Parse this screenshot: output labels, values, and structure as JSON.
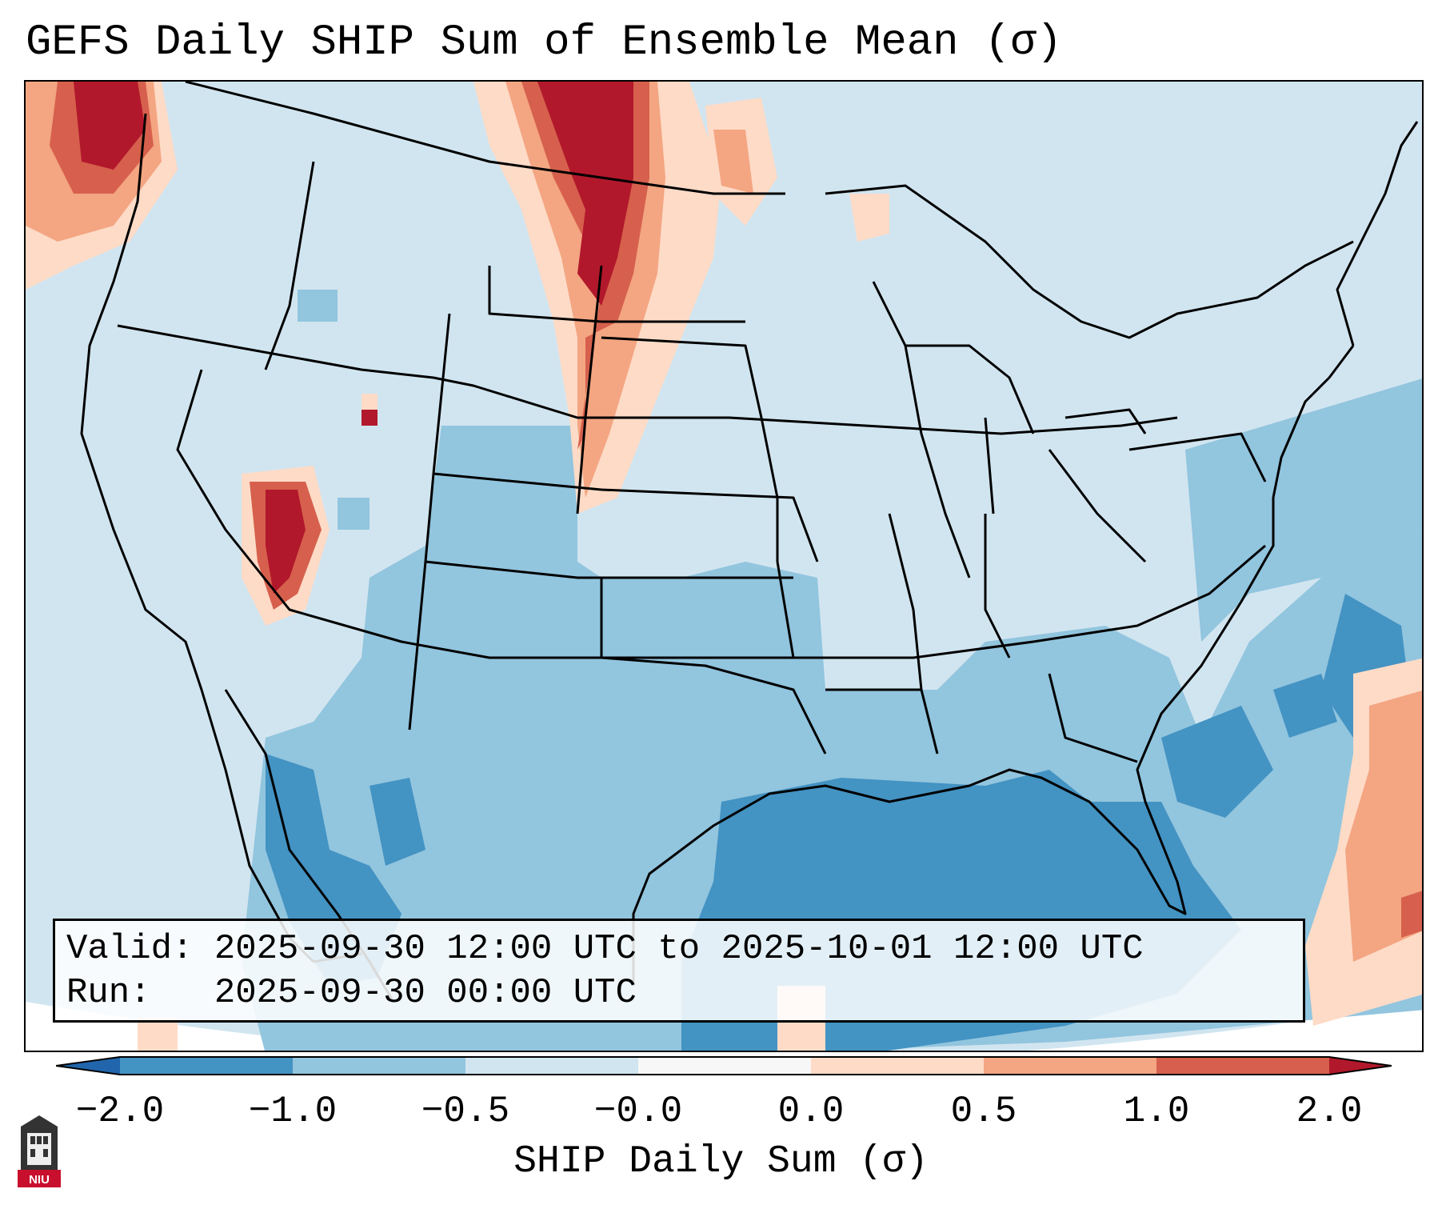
{
  "title": "GEFS Daily SHIP Sum of Ensemble Mean (σ)",
  "info_box": {
    "valid_label": "Valid:",
    "valid_value": "2025-09-30 12:00 UTC to 2025-10-01 12:00 UTC",
    "run_label": "Run:",
    "run_value": "2025-09-30 00:00 UTC"
  },
  "colorbar": {
    "label": "SHIP Daily Sum (σ)",
    "ticks": [
      "−2.0",
      "−1.0",
      "−0.5",
      "−0.0",
      "0.0",
      "0.5",
      "1.0",
      "2.0"
    ],
    "colors": {
      "extend_low": "#2166ac",
      "bin_neg_2_to_neg_1": "#4393c3",
      "bin_neg_1_to_neg_05": "#92c5de",
      "bin_neg_05_to_0": "#d1e5f0",
      "bin_0": "#f7f7f7",
      "bin_0_to_05": "#fddbc7",
      "bin_05_to_1": "#f4a582",
      "bin_1_to_2": "#d6604d",
      "extend_high": "#b2182b"
    }
  },
  "logo": {
    "text": "NIU",
    "icon": "niu-tower-icon"
  }
}
